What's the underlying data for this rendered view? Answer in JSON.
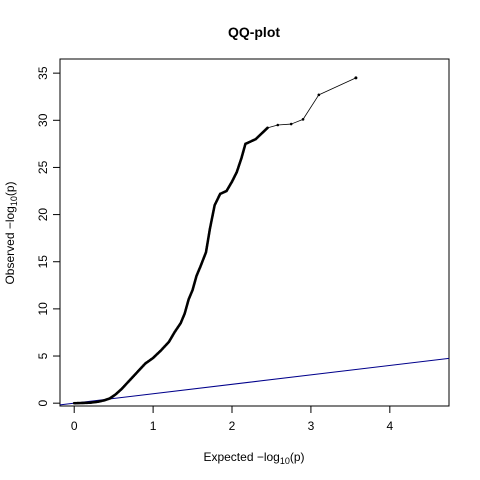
{
  "chart_data": {
    "type": "scatter",
    "title": "QQ-plot",
    "xlabel": {
      "prefix": "Expected  −log",
      "sub": "10",
      "suffix": "(p)"
    },
    "ylabel": {
      "prefix": "Observed  −log",
      "sub": "10",
      "suffix": "(p)"
    },
    "xlim": [
      -0.18,
      4.75
    ],
    "ylim": [
      -0.3,
      36.5
    ],
    "xticks": [
      0,
      1,
      2,
      3,
      4
    ],
    "yticks": [
      0,
      5,
      10,
      15,
      20,
      25,
      30,
      35
    ],
    "xticklabels": [
      "0",
      "1",
      "2",
      "3",
      "4"
    ],
    "yticklabels": [
      "0",
      "5",
      "10",
      "15",
      "20",
      "25",
      "30",
      "35"
    ],
    "grid": false,
    "reference_line": {
      "slope": 1,
      "intercept": 0,
      "color": "#00008b"
    },
    "point_color": "#000000",
    "curve": [
      [
        0.0,
        0.0
      ],
      [
        0.1,
        0.02
      ],
      [
        0.2,
        0.05
      ],
      [
        0.3,
        0.15
      ],
      [
        0.38,
        0.3
      ],
      [
        0.45,
        0.5
      ],
      [
        0.52,
        0.9
      ],
      [
        0.6,
        1.5
      ],
      [
        0.7,
        2.4
      ],
      [
        0.8,
        3.3
      ],
      [
        0.9,
        4.2
      ],
      [
        1.0,
        4.8
      ],
      [
        1.1,
        5.6
      ],
      [
        1.2,
        6.5
      ],
      [
        1.27,
        7.5
      ],
      [
        1.35,
        8.5
      ],
      [
        1.4,
        9.5
      ],
      [
        1.45,
        11.0
      ],
      [
        1.5,
        12.0
      ],
      [
        1.55,
        13.5
      ],
      [
        1.6,
        14.5
      ],
      [
        1.67,
        16.0
      ],
      [
        1.72,
        18.5
      ],
      [
        1.78,
        21.0
      ],
      [
        1.85,
        22.2
      ],
      [
        1.93,
        22.5
      ],
      [
        2.0,
        23.5
      ],
      [
        2.06,
        24.5
      ],
      [
        2.12,
        26.0
      ],
      [
        2.17,
        27.5
      ],
      [
        2.3,
        28.0
      ],
      [
        2.45,
        29.2
      ],
      [
        2.58,
        29.5
      ],
      [
        2.75,
        29.6
      ],
      [
        2.9,
        30.1
      ],
      [
        3.1,
        32.7
      ],
      [
        3.57,
        34.5
      ]
    ]
  }
}
